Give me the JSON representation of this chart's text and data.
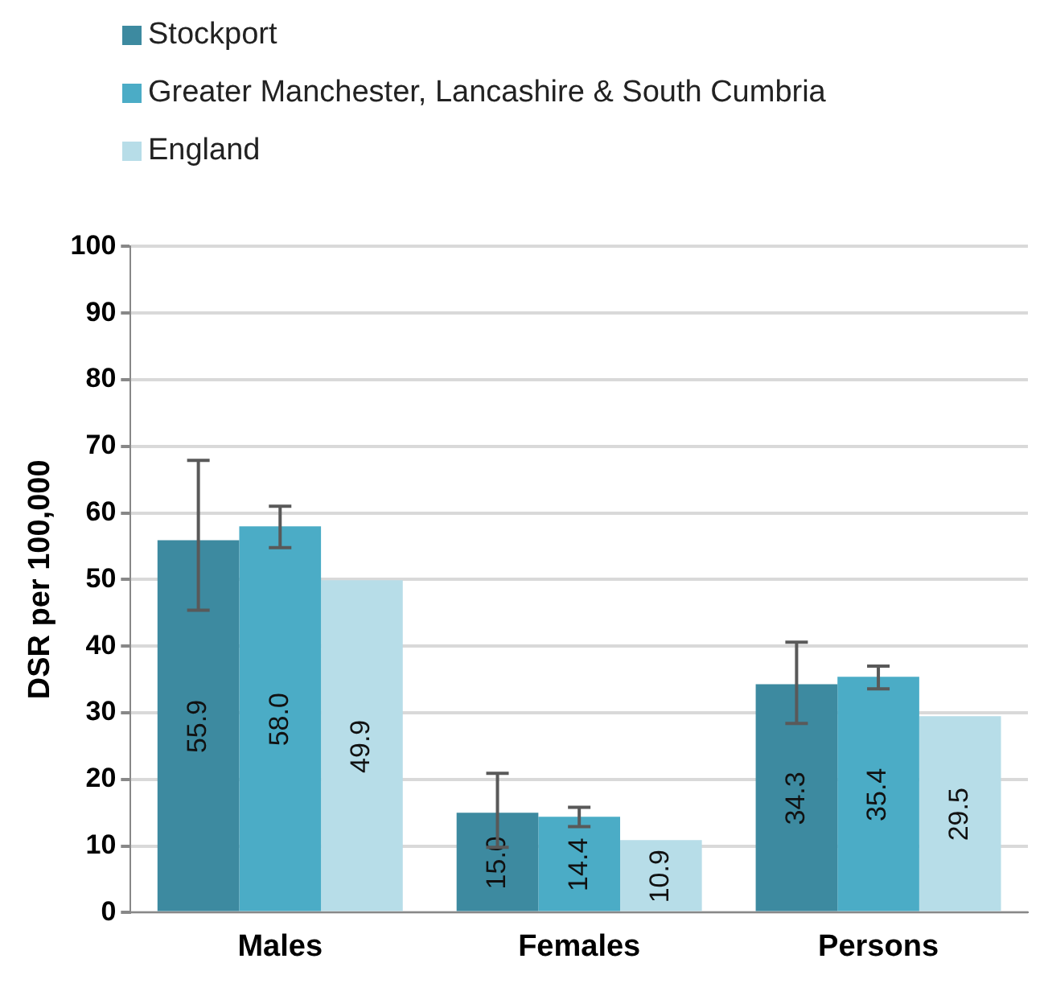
{
  "chart_data": {
    "type": "bar",
    "ylabel": "DSR per 100,000",
    "categories": [
      "Males",
      "Females",
      "Persons"
    ],
    "series": [
      {
        "name": "Stockport",
        "color": "#3d8aa0",
        "values": [
          55.9,
          15.0,
          34.3
        ],
        "value_labels": [
          "55.9",
          "15.0",
          "34.3"
        ],
        "errors": [
          [
            45.4,
            67.9
          ],
          [
            9.8,
            20.9
          ],
          [
            28.4,
            40.6
          ]
        ]
      },
      {
        "name": "Greater Manchester, Lancashire & South Cumbria",
        "color": "#4bacc6",
        "values": [
          58.0,
          14.4,
          35.4
        ],
        "value_labels": [
          "58.0",
          "14.4",
          "35.4"
        ],
        "errors": [
          [
            54.8,
            61.0
          ],
          [
            12.9,
            15.8
          ],
          [
            33.6,
            37.0
          ]
        ]
      },
      {
        "name": "England",
        "color": "#b7dde8",
        "values": [
          49.9,
          10.9,
          29.5
        ],
        "value_labels": [
          "49.9",
          "10.9",
          "29.5"
        ]
      }
    ],
    "ylim": [
      0,
      100
    ],
    "yticks": [
      0,
      10,
      20,
      30,
      40,
      50,
      60,
      70,
      80,
      90,
      100
    ],
    "grid": "y",
    "legend": "top left"
  }
}
